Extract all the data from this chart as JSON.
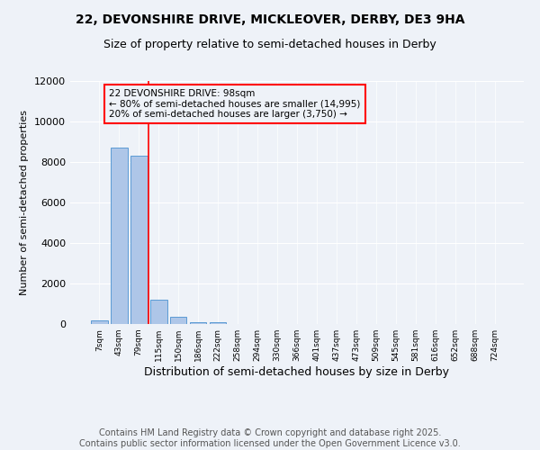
{
  "title": "22, DEVONSHIRE DRIVE, MICKLEOVER, DERBY, DE3 9HA",
  "subtitle": "Size of property relative to semi-detached houses in Derby",
  "xlabel": "Distribution of semi-detached houses by size in Derby",
  "ylabel": "Number of semi-detached properties",
  "categories": [
    "7sqm",
    "43sqm",
    "79sqm",
    "115sqm",
    "150sqm",
    "186sqm",
    "222sqm",
    "258sqm",
    "294sqm",
    "330sqm",
    "366sqm",
    "401sqm",
    "437sqm",
    "473sqm",
    "509sqm",
    "545sqm",
    "581sqm",
    "616sqm",
    "652sqm",
    "688sqm",
    "724sqm"
  ],
  "values": [
    200,
    8700,
    8300,
    1200,
    350,
    100,
    75,
    0,
    0,
    0,
    0,
    0,
    0,
    0,
    0,
    0,
    0,
    0,
    0,
    0,
    0
  ],
  "bar_color": "#aec6e8",
  "bar_edge_color": "#5b9bd5",
  "red_line_x": 2.5,
  "annotation_line1": "22 DEVONSHIRE DRIVE: 98sqm",
  "annotation_line2": "← 80% of semi-detached houses are smaller (14,995)",
  "annotation_line3": "20% of semi-detached houses are larger (3,750) →",
  "ylim": [
    0,
    12000
  ],
  "yticks": [
    0,
    2000,
    4000,
    6000,
    8000,
    10000,
    12000
  ],
  "footer_line1": "Contains HM Land Registry data © Crown copyright and database right 2025.",
  "footer_line2": "Contains public sector information licensed under the Open Government Licence v3.0.",
  "bg_color": "#eef2f8",
  "grid_color": "#ffffff",
  "title_fontsize": 10,
  "subtitle_fontsize": 9,
  "annotation_fontsize": 7.5,
  "footer_fontsize": 7,
  "xlabel_fontsize": 9,
  "ylabel_fontsize": 8
}
